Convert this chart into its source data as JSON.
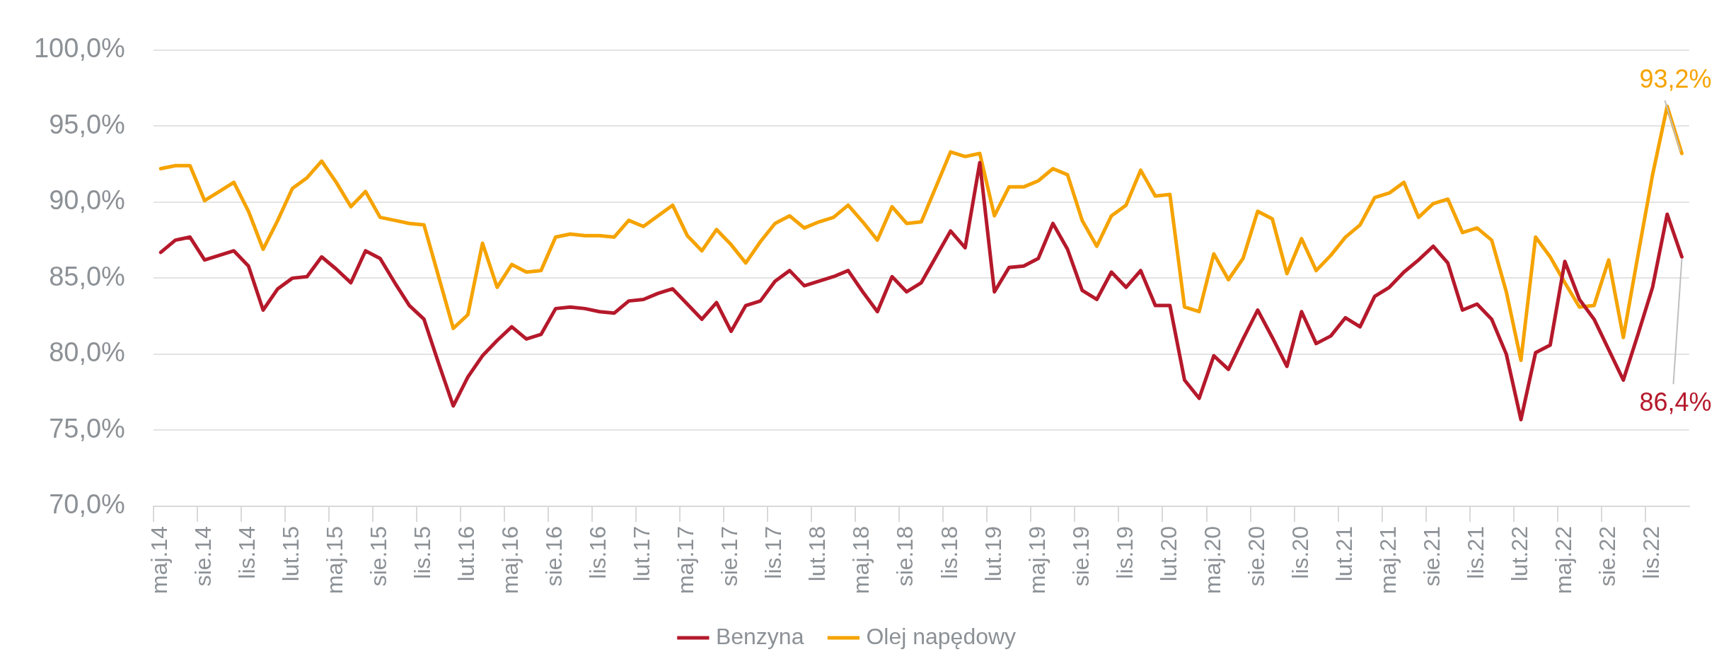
{
  "chart_data": {
    "type": "line",
    "categories": [
      "maj.14",
      null,
      null,
      "sie.14",
      null,
      null,
      "lis.14",
      null,
      null,
      "lut.15",
      null,
      null,
      "maj.15",
      null,
      null,
      "sie.15",
      null,
      null,
      "lis.15",
      null,
      null,
      "lut.16",
      null,
      null,
      "maj.16",
      null,
      null,
      "sie.16",
      null,
      null,
      "lis.16",
      null,
      null,
      "lut.17",
      null,
      null,
      "maj.17",
      null,
      null,
      "sie.17",
      null,
      null,
      "lis.17",
      null,
      null,
      "lut.18",
      null,
      null,
      "maj.18",
      null,
      null,
      "sie.18",
      null,
      null,
      "lis.18",
      null,
      null,
      "lut.19",
      null,
      null,
      "maj.19",
      null,
      null,
      "sie.19",
      null,
      null,
      "lis.19",
      null,
      null,
      "lut.20",
      null,
      null,
      "maj.20",
      null,
      null,
      "sie.20",
      null,
      null,
      "lis.20",
      null,
      null,
      "lut.21",
      null,
      null,
      "maj.21",
      null,
      null,
      "sie.21",
      null,
      null,
      "lis.21",
      null,
      null,
      "lut.22",
      null,
      null,
      "maj.22",
      null,
      null,
      "sie.22",
      null,
      null,
      "lis.22",
      null,
      null
    ],
    "series": [
      {
        "name": "Benzyna",
        "color": "#b5192b",
        "values": [
          86.7,
          87.5,
          87.7,
          86.2,
          86.5,
          86.8,
          85.8,
          82.9,
          84.3,
          85.0,
          85.1,
          86.4,
          85.6,
          84.7,
          86.8,
          86.3,
          84.7,
          83.2,
          82.3,
          79.4,
          76.6,
          78.5,
          79.9,
          80.9,
          81.8,
          81.0,
          81.3,
          83.0,
          83.1,
          83.0,
          82.8,
          82.7,
          83.5,
          83.6,
          84.0,
          84.3,
          83.3,
          82.3,
          83.4,
          81.5,
          83.2,
          83.5,
          84.8,
          85.5,
          84.5,
          84.8,
          85.1,
          85.5,
          84.1,
          82.8,
          85.1,
          84.1,
          84.7,
          86.4,
          88.1,
          87.0,
          92.6,
          84.1,
          85.7,
          85.8,
          86.3,
          88.6,
          86.9,
          84.2,
          83.6,
          85.4,
          84.4,
          85.5,
          83.2,
          83.2,
          78.3,
          77.1,
          79.9,
          79.0,
          81.0,
          82.9,
          81.1,
          79.2,
          82.8,
          80.7,
          81.2,
          82.4,
          81.8,
          83.8,
          84.4,
          85.4,
          86.2,
          87.1,
          86.0,
          82.9,
          83.3,
          82.3,
          80.0,
          75.7,
          80.1,
          80.6,
          86.1,
          83.6,
          82.3,
          80.3,
          78.3,
          81.3,
          84.4,
          89.2,
          86.4
        ],
        "value_labels": [
          null,
          null,
          null,
          null,
          null,
          null,
          null,
          null,
          null,
          null,
          null,
          null,
          null,
          null,
          null,
          null,
          null,
          null,
          null,
          null,
          null,
          null,
          null,
          null,
          null,
          null,
          null,
          null,
          null,
          null,
          null,
          null,
          null,
          null,
          null,
          null,
          null,
          null,
          null,
          null,
          null,
          null,
          null,
          null,
          null,
          null,
          null,
          null,
          null,
          null,
          null,
          null,
          null,
          null,
          null,
          null,
          null,
          null,
          null,
          null,
          null,
          null,
          null,
          null,
          null,
          null,
          null,
          null,
          null,
          null,
          null,
          null,
          null,
          null,
          null,
          null,
          null,
          null,
          null,
          null,
          null,
          null,
          null,
          null,
          null,
          null,
          null,
          null,
          null,
          null,
          null,
          null,
          null,
          null,
          null,
          null,
          null,
          null,
          null,
          null,
          null,
          null,
          null,
          null,
          "86,4%"
        ]
      },
      {
        "name": "Olej napędowy",
        "color": "#f5a300",
        "values": [
          92.2,
          92.4,
          92.4,
          90.1,
          90.7,
          91.3,
          89.4,
          86.9,
          88.8,
          90.9,
          91.6,
          92.7,
          91.3,
          89.7,
          90.7,
          89.0,
          88.8,
          88.6,
          88.5,
          85.1,
          81.7,
          82.6,
          87.3,
          84.4,
          85.9,
          85.4,
          85.5,
          87.7,
          87.9,
          87.8,
          87.8,
          87.7,
          88.8,
          88.4,
          89.1,
          89.8,
          87.8,
          86.8,
          88.2,
          87.2,
          86.0,
          87.4,
          88.6,
          89.1,
          88.3,
          88.7,
          89.0,
          89.8,
          88.7,
          87.5,
          89.7,
          88.6,
          88.7,
          91.0,
          93.3,
          93.0,
          93.2,
          89.1,
          91.0,
          91.0,
          91.4,
          92.2,
          91.8,
          88.8,
          87.1,
          89.1,
          89.8,
          92.1,
          90.4,
          90.5,
          83.1,
          82.8,
          86.6,
          84.9,
          86.3,
          89.4,
          88.9,
          85.3,
          87.6,
          85.5,
          86.5,
          87.7,
          88.5,
          90.3,
          90.6,
          91.3,
          89.0,
          89.9,
          90.2,
          88.0,
          88.3,
          87.5,
          84.1,
          79.6,
          87.7,
          86.4,
          84.7,
          83.1,
          83.2,
          86.2,
          81.1,
          86.5,
          91.8,
          96.3,
          93.2
        ],
        "value_labels": [
          null,
          null,
          null,
          null,
          null,
          null,
          null,
          null,
          null,
          null,
          null,
          null,
          null,
          null,
          null,
          null,
          null,
          null,
          null,
          null,
          null,
          null,
          null,
          null,
          null,
          null,
          null,
          null,
          null,
          null,
          null,
          null,
          null,
          null,
          null,
          null,
          null,
          null,
          null,
          null,
          null,
          null,
          null,
          null,
          null,
          null,
          null,
          null,
          null,
          null,
          null,
          null,
          null,
          null,
          null,
          null,
          null,
          null,
          null,
          null,
          null,
          null,
          null,
          null,
          null,
          null,
          null,
          null,
          null,
          null,
          null,
          null,
          null,
          null,
          null,
          null,
          null,
          null,
          null,
          null,
          null,
          null,
          null,
          null,
          null,
          null,
          null,
          null,
          null,
          null,
          null,
          null,
          null,
          null,
          null,
          null,
          null,
          null,
          null,
          null,
          null,
          null,
          null,
          null,
          "93,2%"
        ]
      }
    ],
    "ylim": [
      70,
      100
    ],
    "yticks": [
      {
        "value": 70,
        "label": "70,0%"
      },
      {
        "value": 75,
        "label": "75,0%"
      },
      {
        "value": 80,
        "label": "80,0%"
      },
      {
        "value": 85,
        "label": "85,0%"
      },
      {
        "value": 90,
        "label": "90,0%"
      },
      {
        "value": 95,
        "label": "95,0%"
      },
      {
        "value": 100,
        "label": "100,0%"
      }
    ],
    "grid": "y",
    "legend": "bottom",
    "marker": "none",
    "line_style": "solid"
  }
}
